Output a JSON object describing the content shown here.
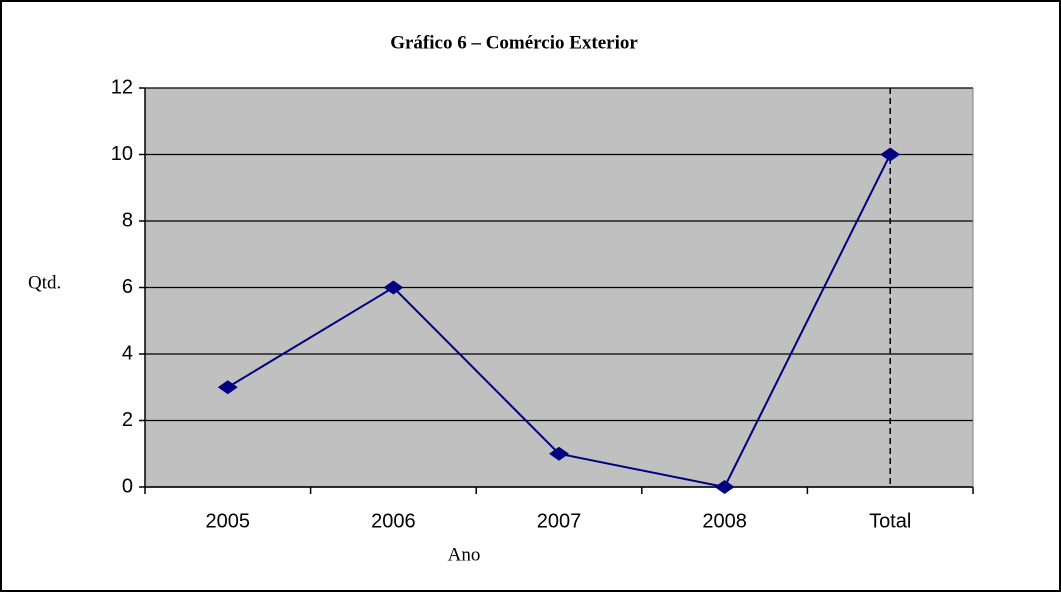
{
  "chart_data": {
    "type": "line",
    "title": "Gráfico 6 – Comércio Exterior",
    "x_label": "Ano",
    "y_label": "Qtd.",
    "categories": [
      "2005",
      "2006",
      "2007",
      "2008",
      "Total"
    ],
    "series": [
      {
        "name": "Qtd.",
        "color": "#000080",
        "values": [
          3,
          6,
          1,
          0,
          10
        ]
      }
    ],
    "ylim": [
      0,
      12
    ],
    "yticks": [
      0,
      2,
      4,
      6,
      8,
      10,
      12
    ],
    "grid": true
  }
}
